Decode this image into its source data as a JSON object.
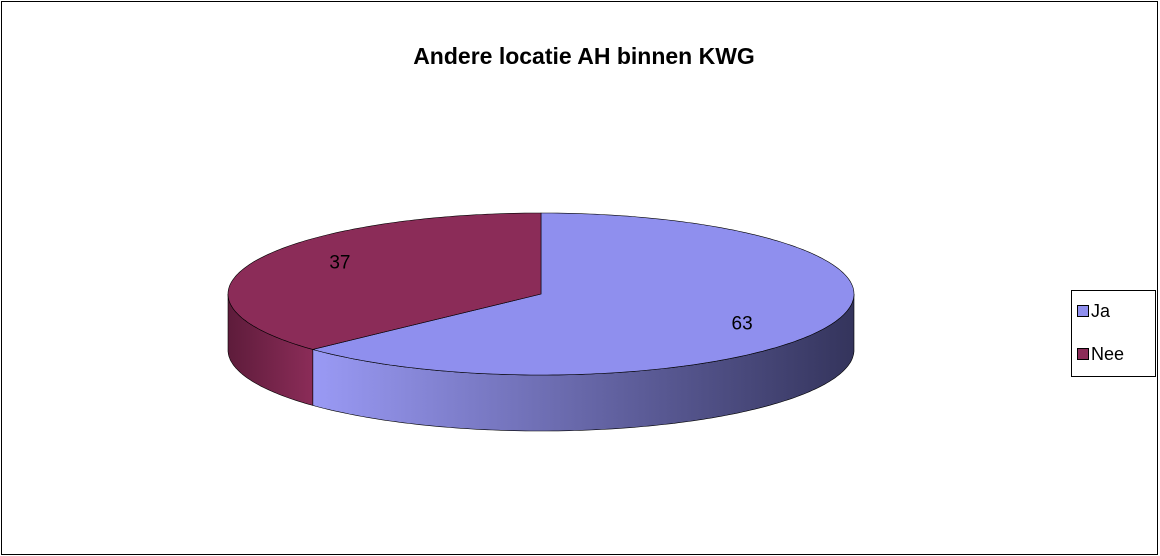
{
  "chart_data": {
    "type": "pie",
    "title": "Andere locatie AH binnen KWG",
    "categories": [
      "Ja",
      "Nee"
    ],
    "values": [
      63,
      37
    ],
    "colors": [
      "#8f8fee",
      "#8b2c58"
    ],
    "legend": "right"
  }
}
